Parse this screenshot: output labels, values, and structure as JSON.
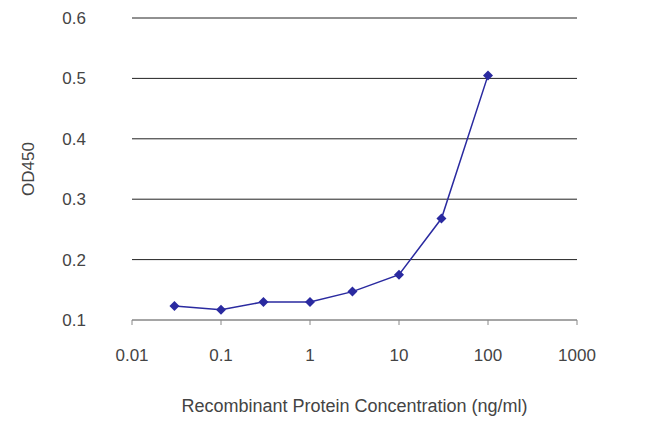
{
  "chart_data": {
    "type": "line",
    "x_label": "Recombinant Protein Concentration (ng/ml)",
    "y_label": "OD450",
    "x": [
      0.03,
      0.1,
      0.3,
      1,
      3,
      10,
      30,
      100
    ],
    "values": [
      0.123,
      0.117,
      0.13,
      0.13,
      0.147,
      0.175,
      0.268,
      0.505
    ],
    "color": "#2a2aa0",
    "marker": "diamond",
    "xlim": [
      0.01,
      1000
    ],
    "ylim": [
      0.1,
      0.6
    ],
    "xticks": [
      0.01,
      0.1,
      1,
      10,
      100,
      1000
    ],
    "yticks": [
      0.1,
      0.2,
      0.3,
      0.4,
      0.5,
      0.6
    ],
    "log": "x",
    "grid": true
  }
}
